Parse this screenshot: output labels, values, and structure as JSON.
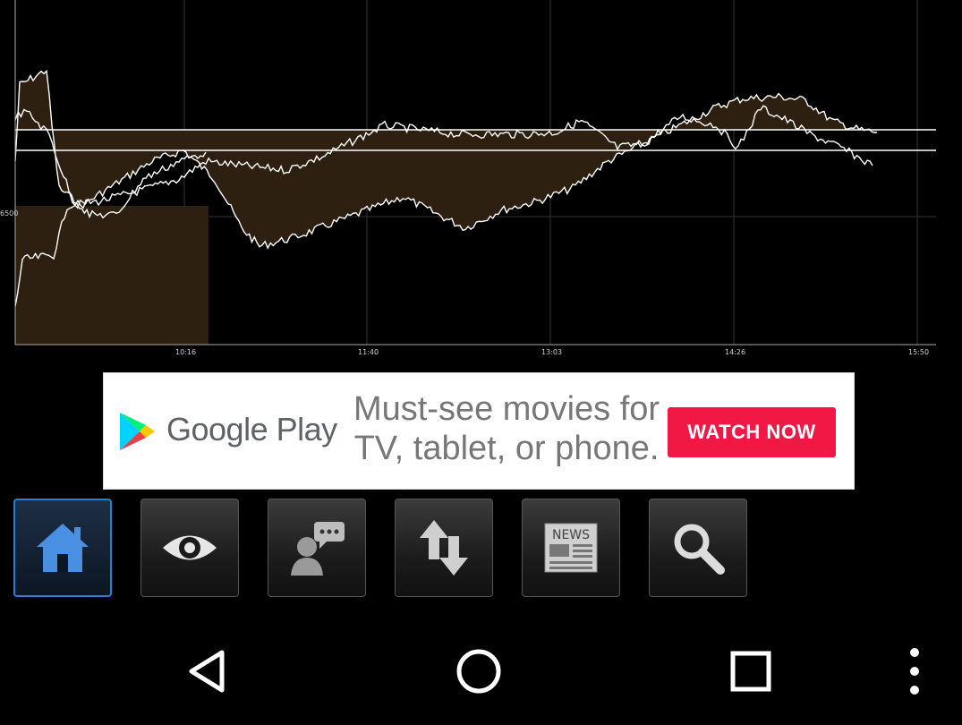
{
  "chart_data": {
    "type": "line",
    "x_tick_labels": [
      "10:16",
      "11:40",
      "13:03",
      "14:26",
      "15:50"
    ],
    "y_tick_labels": [
      "6500"
    ],
    "grid": true,
    "reference_lines": 2,
    "series_color": "#ffffff",
    "fill_color": "#2e2010"
  },
  "ad": {
    "brand": "Google Play",
    "headline_line1": "Must-see movies for",
    "headline_line2": "TV, tablet, or phone.",
    "cta": "WATCH NOW"
  },
  "toolbar": {
    "buttons": [
      {
        "icon": "home-icon",
        "active": true
      },
      {
        "icon": "eye-icon",
        "active": false
      },
      {
        "icon": "chat-icon",
        "active": false
      },
      {
        "icon": "up-down-arrows-icon",
        "active": false
      },
      {
        "icon": "news-icon",
        "active": false,
        "label": "NEWS"
      },
      {
        "icon": "search-icon",
        "active": false
      }
    ]
  },
  "navbar": {
    "items": [
      "back-icon",
      "home-circle-icon",
      "recents-icon",
      "overflow-menu-icon"
    ]
  },
  "colors": {
    "background": "#000000",
    "accent_blue": "#2a7fd4",
    "cta_red": "#f11845"
  }
}
